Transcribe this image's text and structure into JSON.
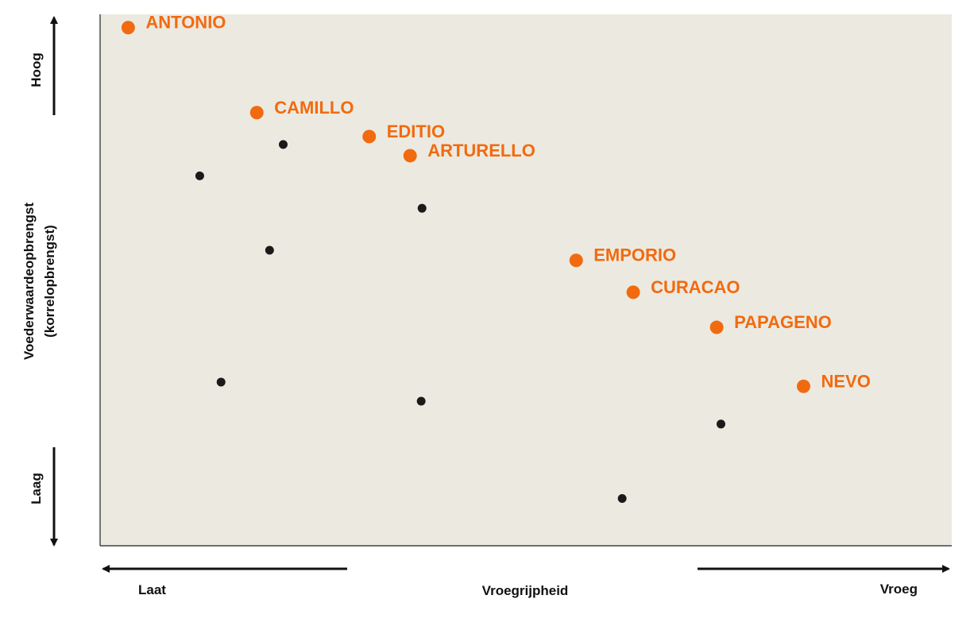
{
  "colors": {
    "plot_background": "#eceae0",
    "highlight": "#f26a10",
    "other": "#1a1a1a",
    "axis": "#222222"
  },
  "labels": {
    "y_top": "Hoog",
    "y_bottom": "Laag",
    "y_title_line1": "Voederwaardeopbrengst",
    "y_title_line2": "(korrelopbrengst)",
    "x_left": "Laat",
    "x_center": "Vroegrijpheid",
    "x_right": "Vroeg"
  },
  "chart_data": {
    "type": "scatter",
    "xlabel": "Vroegrijpheid",
    "ylabel": "Voederwaardeopbrengst (korrelopbrengst)",
    "x_direction": "Laat → Vroeg",
    "y_direction": "Laag → Hoog",
    "xlim": [
      0,
      100
    ],
    "ylim": [
      0,
      100
    ],
    "grid": false,
    "legend": "none",
    "series": [
      {
        "name": "",
        "highlighted": true,
        "points": [
          {
            "label": "ANTONIO",
            "x": 3.3,
            "y": 97.5
          },
          {
            "label": "CAMILLO",
            "x": 18.4,
            "y": 81.5
          },
          {
            "label": "EDITIO",
            "x": 31.6,
            "y": 77.0
          },
          {
            "label": "ARTURELLO",
            "x": 36.4,
            "y": 73.4
          },
          {
            "label": "EMPORIO",
            "x": 55.9,
            "y": 53.7
          },
          {
            "label": "CURACAO",
            "x": 62.6,
            "y": 47.7
          },
          {
            "label": "PAPAGENO",
            "x": 72.4,
            "y": 41.1
          },
          {
            "label": "NEVO",
            "x": 82.6,
            "y": 30.0
          }
        ]
      },
      {
        "name": "",
        "highlighted": false,
        "points": [
          {
            "x": 21.5,
            "y": 75.5
          },
          {
            "x": 11.7,
            "y": 69.6
          },
          {
            "x": 37.8,
            "y": 63.5
          },
          {
            "x": 19.9,
            "y": 55.6
          },
          {
            "x": 14.2,
            "y": 30.8
          },
          {
            "x": 37.7,
            "y": 27.2
          },
          {
            "x": 72.9,
            "y": 22.9
          },
          {
            "x": 61.3,
            "y": 8.9
          }
        ]
      }
    ]
  }
}
